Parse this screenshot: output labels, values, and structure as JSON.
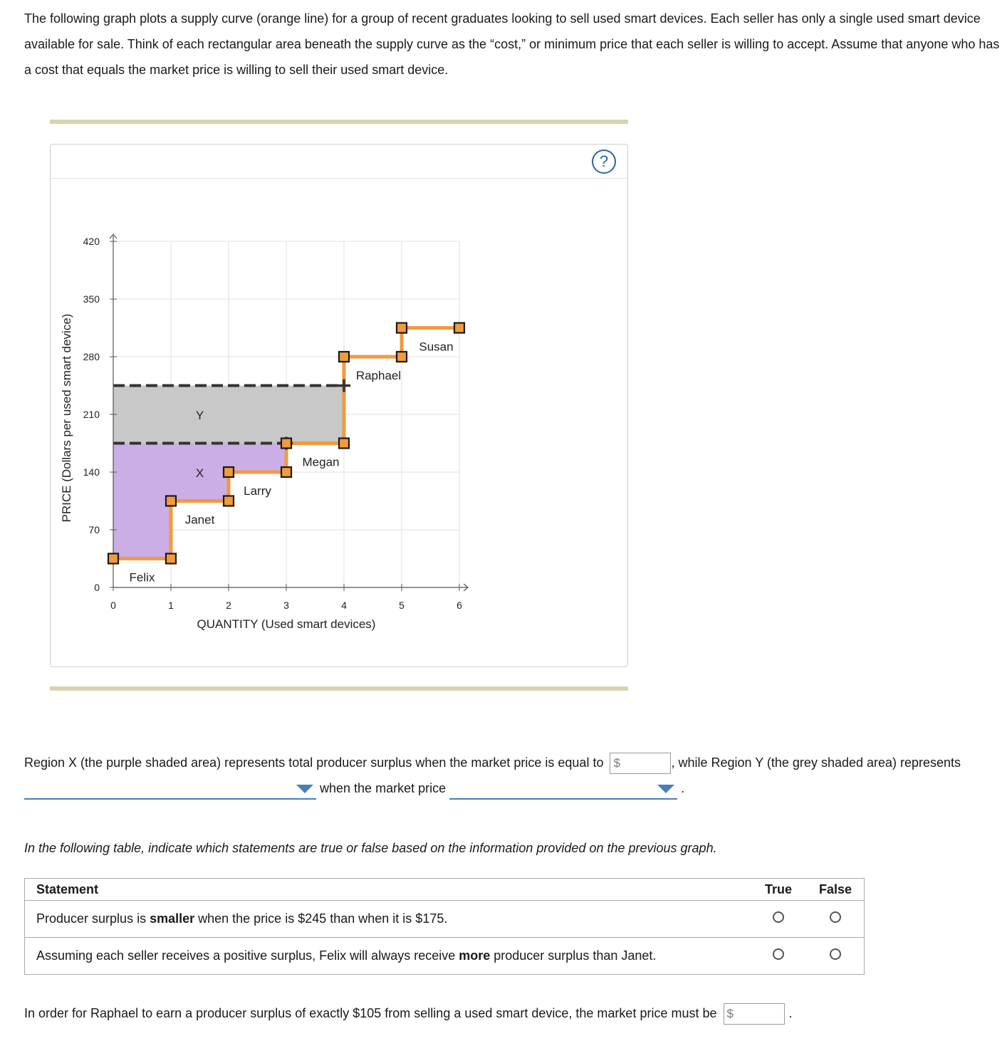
{
  "intro": "The following graph plots a supply curve (orange line) for a group of recent graduates looking to sell used smart devices. Each seller has only a single used smart device available for sale. Think of each rectangular area beneath the supply curve as the “cost,” or minimum price that each seller is willing to accept. Assume that anyone who has a cost that equals the market price is willing to sell their used smart device.",
  "help_symbol": "?",
  "chart_data": {
    "type": "step-line",
    "xlabel": "QUANTITY (Used smart devices)",
    "ylabel": "PRICE (Dollars per used smart device)",
    "xlim": [
      0,
      6
    ],
    "ylim": [
      0,
      420
    ],
    "xticks": [
      0,
      1,
      2,
      3,
      4,
      5,
      6
    ],
    "yticks": [
      0,
      70,
      140,
      210,
      280,
      350,
      420
    ],
    "colors": {
      "supply": "#f19a3e",
      "region_x": "#cbaee6",
      "region_y": "#c8c8c8",
      "grid": "#e2e2e2",
      "axis": "#555555"
    },
    "sellers": [
      {
        "name": "Felix",
        "cost": 35,
        "from": 0,
        "to": 1
      },
      {
        "name": "Janet",
        "cost": 105,
        "from": 1,
        "to": 2
      },
      {
        "name": "Larry",
        "cost": 140,
        "from": 2,
        "to": 3
      },
      {
        "name": "Megan",
        "cost": 175,
        "from": 3,
        "to": 4
      },
      {
        "name": "Raphael",
        "cost": 280,
        "from": 4,
        "to": 5
      },
      {
        "name": "Susan",
        "cost": 315,
        "from": 5,
        "to": 6
      }
    ],
    "regions": [
      {
        "label": "X",
        "price_low": 0,
        "price_high": 175,
        "label_x": 1.5,
        "label_y": 140
      },
      {
        "label": "Y",
        "price_low": 175,
        "price_high": 245,
        "label_x": 1.5,
        "label_y": 210
      }
    ],
    "price_lines": [
      175,
      245
    ],
    "cross_markers": [
      {
        "x": 3,
        "y": 175
      },
      {
        "x": 4,
        "y": 245
      }
    ]
  },
  "question1": {
    "part1": "Region X (the purple shaded area) represents total producer surplus when the market price is equal to",
    "currency": "$",
    "part2": ", while Region Y (the grey shaded area) represents",
    "part3": "when the market price",
    "end": "."
  },
  "table": {
    "instruction": "In the following table, indicate which statements are true or false based on the information provided on the previous graph.",
    "headers": [
      "Statement",
      "True",
      "False"
    ],
    "rows": [
      {
        "pre": "Producer surplus is ",
        "bold": "smaller",
        "post": " when the price is $245 than when it is $175."
      },
      {
        "pre": "Assuming each seller receives a positive surplus, Felix will always receive ",
        "bold": "more",
        "post": " producer surplus than Janet."
      }
    ]
  },
  "question3": {
    "text": "In order for Raphael to earn a producer surplus of exactly $105 from selling a used smart device, the market price must be",
    "currency": "$",
    "end": "."
  }
}
